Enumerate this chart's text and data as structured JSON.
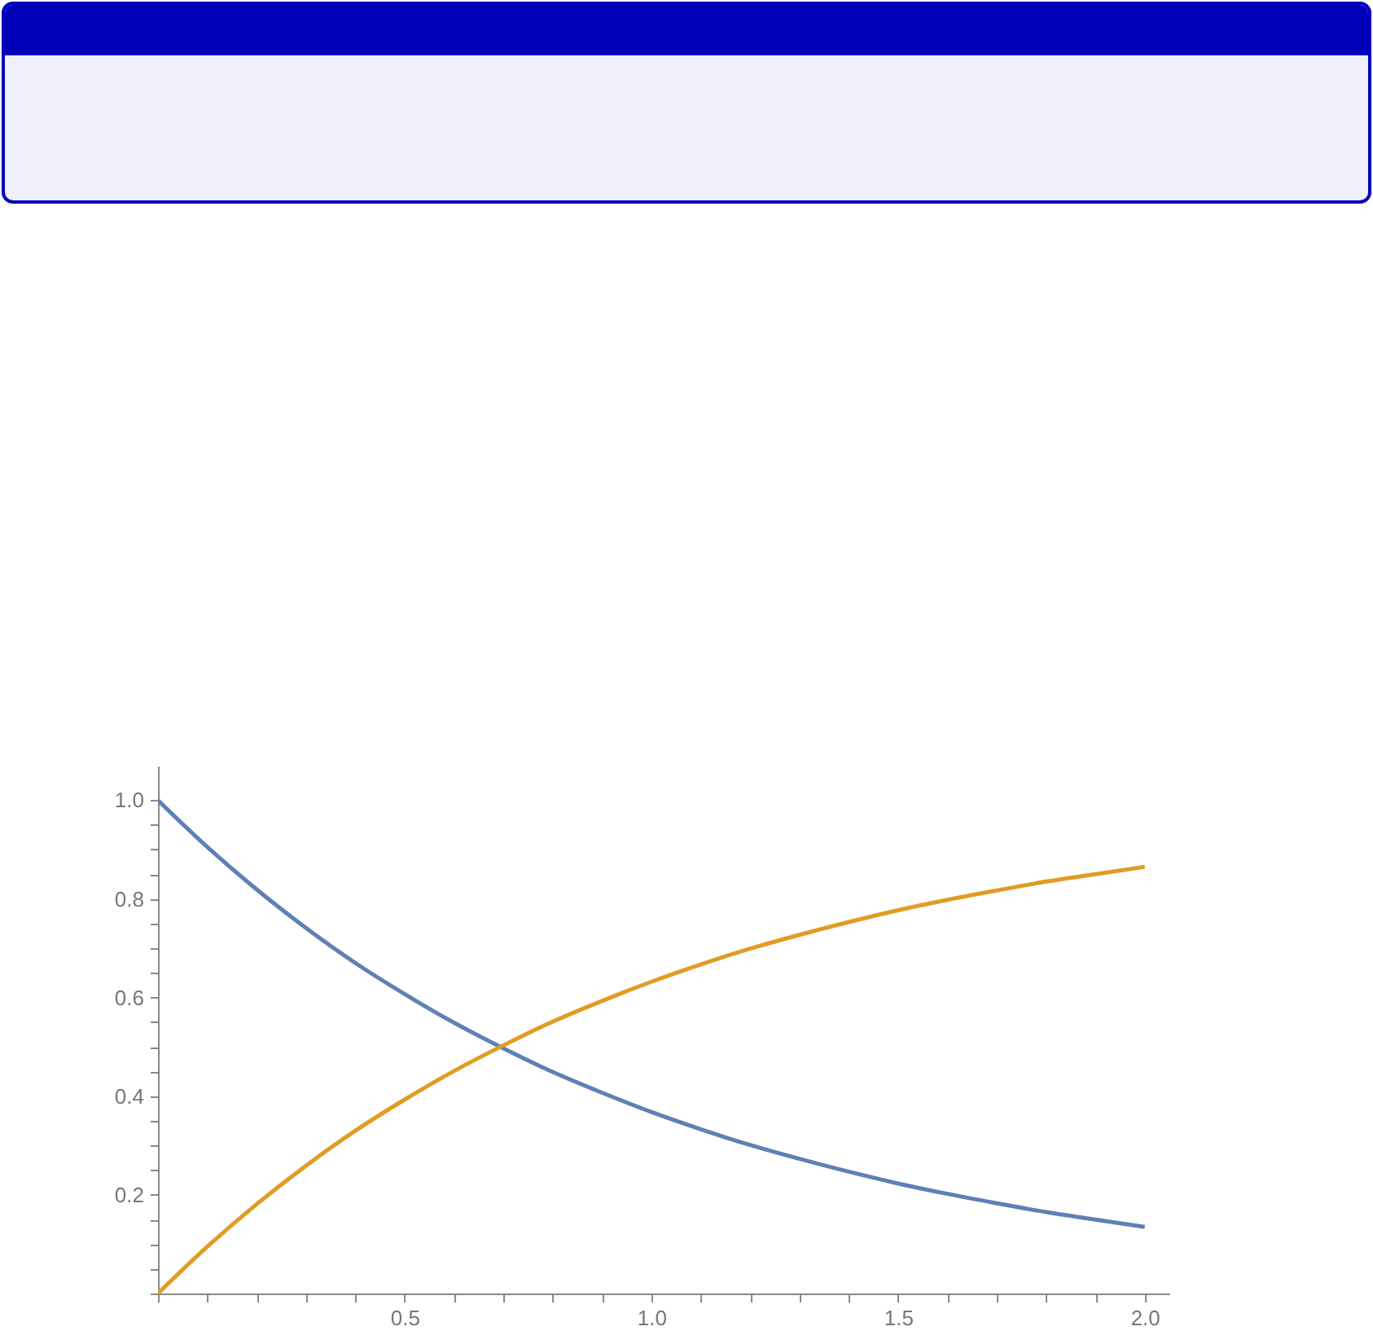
{
  "chart_data": {
    "type": "line",
    "x": [
      0,
      0.1,
      0.2,
      0.3,
      0.4,
      0.5,
      0.6,
      0.7,
      0.8,
      0.9,
      1.0,
      1.1,
      1.2,
      1.3,
      1.4,
      1.5,
      1.6,
      1.7,
      1.8,
      1.9,
      2.0
    ],
    "series": [
      {
        "color": "#5e81b5",
        "values": [
          1,
          0.905,
          0.819,
          0.741,
          0.67,
          0.607,
          0.549,
          0.497,
          0.449,
          0.407,
          0.368,
          0.333,
          0.301,
          0.273,
          0.247,
          0.223,
          0.202,
          0.183,
          0.165,
          0.15,
          0.135
        ]
      },
      {
        "color": "#e19c24",
        "values": [
          0,
          0.095,
          0.181,
          0.259,
          0.33,
          0.393,
          0.451,
          0.503,
          0.551,
          0.593,
          0.632,
          0.667,
          0.699,
          0.727,
          0.753,
          0.777,
          0.798,
          0.817,
          0.835,
          0.85,
          0.865
        ]
      }
    ],
    "xlim": [
      0,
      2.05
    ],
    "ylim": [
      0,
      1.07
    ],
    "xticks": [
      {
        "value": 0,
        "label": null
      },
      {
        "value": 0.1,
        "label": null
      },
      {
        "value": 0.2,
        "label": null
      },
      {
        "value": 0.3,
        "label": null
      },
      {
        "value": 0.4,
        "label": null
      },
      0.5,
      {
        "value": 0.6,
        "label": null
      },
      {
        "value": 0.7,
        "label": null
      },
      {
        "value": 0.8,
        "label": null
      },
      {
        "value": 0.9,
        "label": null
      },
      {
        "value": 1,
        "label": "1.0"
      },
      {
        "value": 1.1,
        "label": null
      },
      {
        "value": 1.2,
        "label": null
      },
      {
        "value": 1.3,
        "label": null
      },
      {
        "value": 1.4,
        "label": null
      },
      1.5,
      {
        "value": 1.6,
        "label": null
      },
      {
        "value": 1.7,
        "label": null
      },
      {
        "value": 1.8,
        "label": null
      },
      {
        "value": 1.9,
        "label": null
      },
      {
        "value": 2,
        "label": "2.0"
      }
    ],
    "yticks": [
      {
        "value": 0,
        "label": null
      },
      {
        "value": 0.05,
        "label": null
      },
      {
        "value": 0.1,
        "label": null
      },
      {
        "value": 0.15,
        "label": null
      },
      0.2,
      {
        "value": 0.25,
        "label": null
      },
      {
        "value": 0.3,
        "label": null
      },
      {
        "value": 0.35,
        "label": null
      },
      0.4,
      {
        "value": 0.45,
        "label": null
      },
      {
        "value": 0.5,
        "label": null
      },
      {
        "value": 0.55,
        "label": null
      },
      0.6,
      {
        "value": 0.65,
        "label": null
      },
      {
        "value": 0.7,
        "label": null
      },
      {
        "value": 0.75,
        "label": null
      },
      0.8,
      {
        "value": 0.85,
        "label": null
      },
      {
        "value": 0.9,
        "label": null
      },
      {
        "value": 0.95,
        "label": null
      },
      {
        "value": 1,
        "label": "1.0"
      }
    ]
  }
}
